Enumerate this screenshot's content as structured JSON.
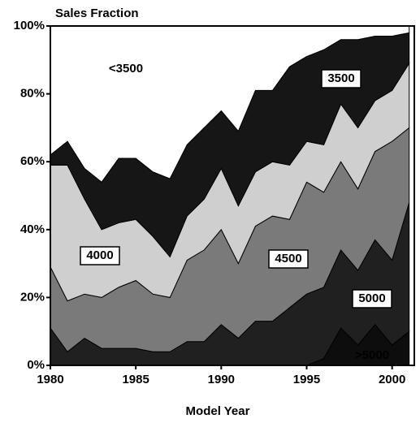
{
  "chart_data": {
    "type": "stacked_area",
    "title": "Sales Fraction",
    "x_label": "Model Year",
    "x": [
      1980,
      1981,
      1982,
      1983,
      1984,
      1985,
      1986,
      1987,
      1988,
      1989,
      1990,
      1991,
      1992,
      1993,
      1994,
      1995,
      1996,
      1997,
      1998,
      1999,
      2000,
      2001
    ],
    "xlim": [
      1980,
      2001.3
    ],
    "xticks": [
      1980,
      1985,
      1990,
      1995,
      2000
    ],
    "ylim": [
      0,
      100
    ],
    "yticks": [
      {
        "value": 0,
        "label": "0%"
      },
      {
        "value": 20,
        "label": "20%"
      },
      {
        "value": 40,
        "label": "40%"
      },
      {
        "value": 60,
        "label": "60%"
      },
      {
        "value": 80,
        "label": "80%"
      },
      {
        "value": 100,
        "label": "100%"
      }
    ],
    "series": [
      {
        "name": ">5000",
        "color": "#0d0d0d",
        "values": [
          0,
          0,
          0,
          0,
          0,
          0,
          0,
          0,
          0,
          0,
          0,
          0,
          0,
          0,
          0,
          0,
          2,
          11,
          6,
          12,
          6,
          10
        ]
      },
      {
        "name": "5000",
        "color": "#202020",
        "values": [
          11,
          4,
          8,
          5,
          5,
          5,
          4,
          4,
          7,
          7,
          12,
          8,
          13,
          13,
          17,
          21,
          21,
          23,
          22,
          25,
          25,
          38
        ]
      },
      {
        "name": "4500",
        "color": "#7a7a7a",
        "values": [
          18,
          15,
          13,
          15,
          18,
          20,
          17,
          16,
          24,
          27,
          28,
          22,
          28,
          31,
          26,
          33,
          28,
          26,
          24,
          26,
          35,
          22
        ]
      },
      {
        "name": "4000",
        "color": "#cfcfcf",
        "values": [
          30,
          40,
          28,
          20,
          19,
          18,
          17,
          12,
          13,
          15,
          18,
          17,
          16,
          16,
          16,
          12,
          14,
          17,
          18,
          15,
          15,
          19
        ]
      },
      {
        "name": "3500",
        "color": "#161616",
        "values": [
          3,
          7,
          9,
          14,
          19,
          18,
          19,
          23,
          21,
          21,
          17,
          22,
          24,
          21,
          29,
          25,
          28,
          19,
          26,
          19,
          16,
          9
        ]
      },
      {
        "name": "<3500",
        "color": "#ffffff",
        "values": [
          38,
          34,
          42,
          46,
          39,
          39,
          43,
          45,
          35,
          30,
          25,
          31,
          19,
          19,
          12,
          9,
          7,
          4,
          4,
          3,
          3,
          2
        ]
      }
    ]
  }
}
